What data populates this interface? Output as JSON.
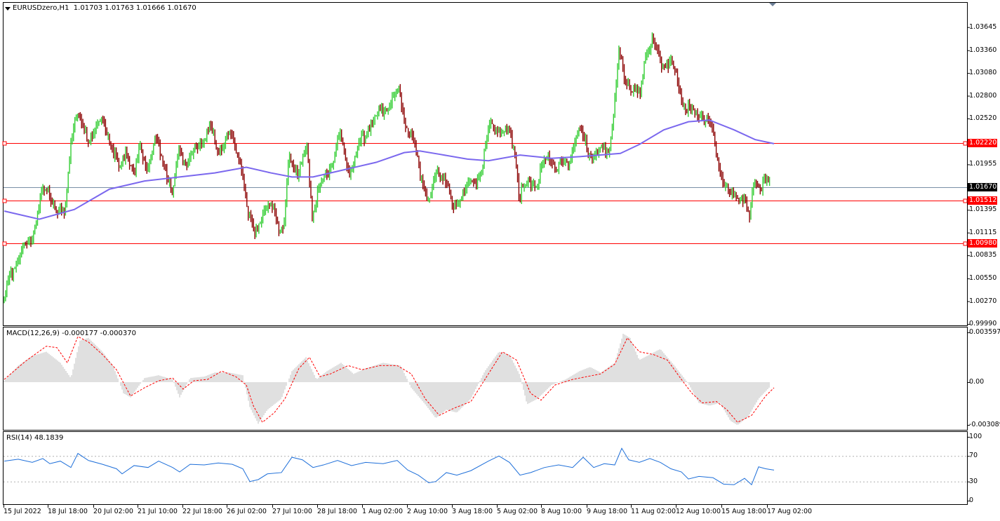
{
  "chart_data": [
    {
      "type": "candlestick",
      "title": "EURUSDzero,H1",
      "ohlc_text": "1.01703 1.01763 1.01666 1.01670",
      "ylim": [
        0.9999,
        1.0372
      ],
      "y_ticks": [
        "1.03645",
        "1.03360",
        "1.03080",
        "1.02800",
        "1.02520",
        "1.01955",
        "1.01395",
        "1.01115",
        "1.00835",
        "1.00550",
        "1.00270",
        "0.99990"
      ],
      "current_price": "1.01670",
      "horizontal_lines": [
        {
          "label": "1.02220",
          "value": 1.0222,
          "color": "#ff0000"
        },
        {
          "label": "1.01512",
          "value": 1.01512,
          "color": "#ff0000"
        },
        {
          "label": "1.00980",
          "value": 1.0098,
          "color": "#ff0000"
        }
      ],
      "up_color": "#32cd32",
      "down_color": "#8b0000",
      "ma_color": "#7b68ee",
      "price_path": [
        [
          0,
          1.0001
        ],
        [
          12,
          1.0052
        ],
        [
          25,
          1.0081
        ],
        [
          45,
          1.0102
        ],
        [
          60,
          1.0165
        ],
        [
          75,
          1.0152
        ],
        [
          92,
          1.0128
        ],
        [
          100,
          1.0218
        ],
        [
          108,
          1.0262
        ],
        [
          125,
          1.0225
        ],
        [
          140,
          1.0248
        ],
        [
          155,
          1.0232
        ],
        [
          170,
          1.0185
        ],
        [
          180,
          1.0215
        ],
        [
          192,
          1.018
        ],
        [
          200,
          1.022
        ],
        [
          210,
          1.0188
        ],
        [
          222,
          1.0225
        ],
        [
          235,
          1.0195
        ],
        [
          245,
          1.0155
        ],
        [
          255,
          1.0215
        ],
        [
          268,
          1.0195
        ],
        [
          280,
          1.0218
        ],
        [
          300,
          1.0238
        ],
        [
          312,
          1.0212
        ],
        [
          325,
          1.023
        ],
        [
          338,
          1.0215
        ],
        [
          345,
          1.0188
        ],
        [
          352,
          1.0135
        ],
        [
          362,
          1.0115
        ],
        [
          375,
          1.0135
        ],
        [
          390,
          1.0148
        ],
        [
          398,
          1.0118
        ],
        [
          404,
          1.0108
        ],
        [
          412,
          1.0205
        ],
        [
          425,
          1.0185
        ],
        [
          438,
          1.0215
        ],
        [
          445,
          1.0135
        ],
        [
          455,
          1.0165
        ],
        [
          470,
          1.0192
        ],
        [
          485,
          1.023
        ],
        [
          498,
          1.0185
        ],
        [
          510,
          1.0215
        ],
        [
          525,
          1.0242
        ],
        [
          540,
          1.0258
        ],
        [
          555,
          1.0272
        ],
        [
          568,
          1.0286
        ],
        [
          578,
          1.0245
        ],
        [
          590,
          1.0218
        ],
        [
          600,
          1.018
        ],
        [
          612,
          1.0152
        ],
        [
          625,
          1.0188
        ],
        [
          637,
          1.0175
        ],
        [
          645,
          1.0135
        ],
        [
          660,
          1.0165
        ],
        [
          675,
          1.017
        ],
        [
          685,
          1.0185
        ],
        [
          698,
          1.0245
        ],
        [
          712,
          1.0238
        ],
        [
          726,
          1.0232
        ],
        [
          734,
          1.0215
        ],
        [
          740,
          1.0155
        ],
        [
          750,
          1.0172
        ],
        [
          765,
          1.0175
        ],
        [
          780,
          1.0205
        ],
        [
          795,
          1.0192
        ],
        [
          810,
          1.02
        ],
        [
          825,
          1.0238
        ],
        [
          840,
          1.021
        ],
        [
          852,
          1.0208
        ],
        [
          868,
          1.0215
        ],
        [
          876,
          1.0268
        ],
        [
          882,
          1.0335
        ],
        [
          890,
          1.0302
        ],
        [
          902,
          1.029
        ],
        [
          912,
          1.0278
        ],
        [
          920,
          1.0335
        ],
        [
          930,
          1.035
        ],
        [
          940,
          1.0322
        ],
        [
          955,
          1.032
        ],
        [
          965,
          1.0298
        ],
        [
          975,
          1.027
        ],
        [
          985,
          1.0258
        ],
        [
          998,
          1.026
        ],
        [
          1012,
          1.0245
        ],
        [
          1020,
          1.0212
        ],
        [
          1030,
          1.0175
        ],
        [
          1040,
          1.0155
        ],
        [
          1052,
          1.016
        ],
        [
          1062,
          1.0148
        ],
        [
          1068,
          1.0128
        ],
        [
          1075,
          1.0178
        ],
        [
          1085,
          1.017
        ],
        [
          1097,
          1.0172
        ]
      ],
      "ma_path": [
        [
          0,
          1.0138
        ],
        [
          50,
          1.0128
        ],
        [
          100,
          1.014
        ],
        [
          150,
          1.0165
        ],
        [
          200,
          1.0175
        ],
        [
          250,
          1.018
        ],
        [
          300,
          1.0185
        ],
        [
          345,
          1.0192
        ],
        [
          380,
          1.0185
        ],
        [
          410,
          1.018
        ],
        [
          440,
          1.018
        ],
        [
          480,
          1.0188
        ],
        [
          530,
          1.0198
        ],
        [
          570,
          1.021
        ],
        [
          592,
          1.0212
        ],
        [
          620,
          1.0208
        ],
        [
          660,
          1.0202
        ],
        [
          690,
          1.02
        ],
        [
          735,
          1.0207
        ],
        [
          780,
          1.0203
        ],
        [
          820,
          1.0205
        ],
        [
          878,
          1.0209
        ],
        [
          905,
          1.022
        ],
        [
          940,
          1.0238
        ],
        [
          975,
          1.0248
        ],
        [
          1005,
          1.025
        ],
        [
          1040,
          1.0238
        ],
        [
          1070,
          1.0226
        ],
        [
          1097,
          1.0221
        ]
      ]
    },
    {
      "type": "bar",
      "title": "MACD(12,26,9) -0.000177 -0.000370",
      "ylim": [
        -0.00309,
        0.0036
      ],
      "y_ticks": [
        "0.003597",
        "0.00",
        "-0.003089"
      ],
      "histogram_color": "#c0c0c0",
      "signal_color": "#ff0000",
      "macd_path": [
        [
          0,
          0.0001
        ],
        [
          20,
          0.0012
        ],
        [
          40,
          0.0019
        ],
        [
          60,
          0.0022
        ],
        [
          80,
          0.0014
        ],
        [
          95,
          0.0003
        ],
        [
          108,
          0.003
        ],
        [
          120,
          0.0032
        ],
        [
          140,
          0.0022
        ],
        [
          155,
          0.0012
        ],
        [
          170,
          -0.0008
        ],
        [
          180,
          -0.0011
        ],
        [
          200,
          0.0003
        ],
        [
          220,
          0.0005
        ],
        [
          240,
          0.0002
        ],
        [
          250,
          -0.0011
        ],
        [
          265,
          0.0003
        ],
        [
          285,
          0.0004
        ],
        [
          300,
          0.0007
        ],
        [
          320,
          0.0007
        ],
        [
          340,
          0.0005
        ],
        [
          350,
          -0.0018
        ],
        [
          362,
          -0.003
        ],
        [
          375,
          -0.002
        ],
        [
          395,
          -0.0012
        ],
        [
          410,
          0.0008
        ],
        [
          430,
          0.0018
        ],
        [
          445,
          0.0002
        ],
        [
          460,
          0.0008
        ],
        [
          480,
          0.0014
        ],
        [
          498,
          0.0006
        ],
        [
          515,
          0.001
        ],
        [
          540,
          0.0014
        ],
        [
          565,
          0.0012
        ],
        [
          580,
          -0.0004
        ],
        [
          600,
          -0.0016
        ],
        [
          615,
          -0.0026
        ],
        [
          630,
          -0.002
        ],
        [
          645,
          -0.0022
        ],
        [
          665,
          -0.0012
        ],
        [
          685,
          0.0008
        ],
        [
          705,
          0.0022
        ],
        [
          720,
          0.002
        ],
        [
          735,
          0.0005
        ],
        [
          745,
          -0.0016
        ],
        [
          760,
          -0.0012
        ],
        [
          780,
          -0.0002
        ],
        [
          800,
          0.0002
        ],
        [
          820,
          0.0008
        ],
        [
          835,
          0.0011
        ],
        [
          850,
          0.0007
        ],
        [
          870,
          0.0014
        ],
        [
          882,
          0.0035
        ],
        [
          892,
          0.0032
        ],
        [
          905,
          0.0016
        ],
        [
          920,
          0.002
        ],
        [
          935,
          0.0024
        ],
        [
          955,
          0.0012
        ],
        [
          975,
          -0.0001
        ],
        [
          990,
          -0.0015
        ],
        [
          1005,
          -0.0017
        ],
        [
          1020,
          -0.0015
        ],
        [
          1035,
          -0.0028
        ],
        [
          1045,
          -0.0031
        ],
        [
          1060,
          -0.0025
        ],
        [
          1075,
          -0.0012
        ],
        [
          1090,
          -0.0004
        ],
        [
          1097,
          -0.0002
        ]
      ],
      "signal_path": [
        [
          0,
          0.0002
        ],
        [
          30,
          0.0015
        ],
        [
          60,
          0.0026
        ],
        [
          75,
          0.0025
        ],
        [
          90,
          0.0014
        ],
        [
          105,
          0.0033
        ],
        [
          120,
          0.0029
        ],
        [
          140,
          0.002
        ],
        [
          160,
          0.0009
        ],
        [
          180,
          -0.001
        ],
        [
          200,
          -0.0004
        ],
        [
          220,
          0.0001
        ],
        [
          240,
          0.0003
        ],
        [
          255,
          -0.0005
        ],
        [
          270,
          0.0001
        ],
        [
          290,
          0.0002
        ],
        [
          310,
          0.0008
        ],
        [
          330,
          0.0004
        ],
        [
          345,
          -0.0002
        ],
        [
          355,
          -0.0017
        ],
        [
          368,
          -0.0029
        ],
        [
          385,
          -0.0022
        ],
        [
          400,
          -0.0012
        ],
        [
          420,
          0.001
        ],
        [
          435,
          0.0018
        ],
        [
          450,
          0.0004
        ],
        [
          465,
          0.0006
        ],
        [
          490,
          0.0012
        ],
        [
          510,
          0.0009
        ],
        [
          535,
          0.0012
        ],
        [
          560,
          0.0012
        ],
        [
          580,
          0.0006
        ],
        [
          600,
          -0.0012
        ],
        [
          620,
          -0.0024
        ],
        [
          640,
          -0.0019
        ],
        [
          665,
          -0.0014
        ],
        [
          685,
          0.0002
        ],
        [
          710,
          0.0022
        ],
        [
          730,
          0.0016
        ],
        [
          750,
          -0.0008
        ],
        [
          765,
          -0.0013
        ],
        [
          785,
          -0.0002
        ],
        [
          810,
          0.0002
        ],
        [
          830,
          0.0004
        ],
        [
          850,
          0.0006
        ],
        [
          870,
          0.0013
        ],
        [
          888,
          0.0032
        ],
        [
          905,
          0.0022
        ],
        [
          925,
          0.002
        ],
        [
          945,
          0.0016
        ],
        [
          965,
          0.0002
        ],
        [
          980,
          -0.0008
        ],
        [
          995,
          -0.0015
        ],
        [
          1015,
          -0.0014
        ],
        [
          1030,
          -0.002
        ],
        [
          1045,
          -0.0029
        ],
        [
          1065,
          -0.0024
        ],
        [
          1085,
          -0.001
        ],
        [
          1097,
          -0.0004
        ]
      ]
    },
    {
      "type": "line",
      "title": "RSI(14) 48.1839",
      "ylim": [
        0,
        100
      ],
      "y_ticks": [
        "100",
        "70",
        "30",
        "0"
      ],
      "levels": [
        70,
        30
      ],
      "series": [
        {
          "color": "#1e6fd9",
          "path": [
            [
              0,
              62
            ],
            [
              20,
              65
            ],
            [
              40,
              60
            ],
            [
              55,
              66
            ],
            [
              65,
              58
            ],
            [
              80,
              62
            ],
            [
              95,
              52
            ],
            [
              105,
              74
            ],
            [
              120,
              63
            ],
            [
              140,
              57
            ],
            [
              160,
              50
            ],
            [
              168,
              42
            ],
            [
              185,
              55
            ],
            [
              205,
              52
            ],
            [
              220,
              62
            ],
            [
              240,
              52
            ],
            [
              250,
              45
            ],
            [
              265,
              57
            ],
            [
              285,
              56
            ],
            [
              305,
              59
            ],
            [
              325,
              57
            ],
            [
              340,
              50
            ],
            [
              350,
              30
            ],
            [
              362,
              33
            ],
            [
              375,
              42
            ],
            [
              395,
              44
            ],
            [
              410,
              68
            ],
            [
              425,
              64
            ],
            [
              440,
              52
            ],
            [
              455,
              56
            ],
            [
              475,
              63
            ],
            [
              495,
              55
            ],
            [
              515,
              60
            ],
            [
              540,
              58
            ],
            [
              560,
              63
            ],
            [
              575,
              48
            ],
            [
              590,
              40
            ],
            [
              605,
              28
            ],
            [
              615,
              30
            ],
            [
              630,
              44
            ],
            [
              645,
              40
            ],
            [
              665,
              47
            ],
            [
              690,
              62
            ],
            [
              705,
              70
            ],
            [
              720,
              60
            ],
            [
              735,
              40
            ],
            [
              750,
              44
            ],
            [
              770,
              52
            ],
            [
              790,
              56
            ],
            [
              810,
              52
            ],
            [
              825,
              68
            ],
            [
              840,
              52
            ],
            [
              855,
              58
            ],
            [
              870,
              56
            ],
            [
              880,
              82
            ],
            [
              890,
              64
            ],
            [
              905,
              60
            ],
            [
              920,
              66
            ],
            [
              935,
              60
            ],
            [
              950,
              50
            ],
            [
              965,
              45
            ],
            [
              975,
              34
            ],
            [
              990,
              38
            ],
            [
              1010,
              36
            ],
            [
              1025,
              26
            ],
            [
              1040,
              25
            ],
            [
              1055,
              35
            ],
            [
              1065,
              25
            ],
            [
              1075,
              53
            ],
            [
              1085,
              50
            ],
            [
              1097,
              48
            ]
          ]
        }
      ]
    }
  ],
  "x_axis_labels": [
    "15 Jul 2022",
    "18 Jul 18:00",
    "20 Jul 02:00",
    "21 Jul 10:00",
    "22 Jul 18:00",
    "26 Jul 02:00",
    "27 Jul 10:00",
    "28 Jul 18:00",
    "1 Aug 02:00",
    "2 Aug 10:00",
    "3 Aug 18:00",
    "5 Aug 02:00",
    "8 Aug 10:00",
    "9 Aug 18:00",
    "11 Aug 02:00",
    "12 Aug 10:00",
    "15 Aug 18:00",
    "17 Aug 02:00"
  ]
}
